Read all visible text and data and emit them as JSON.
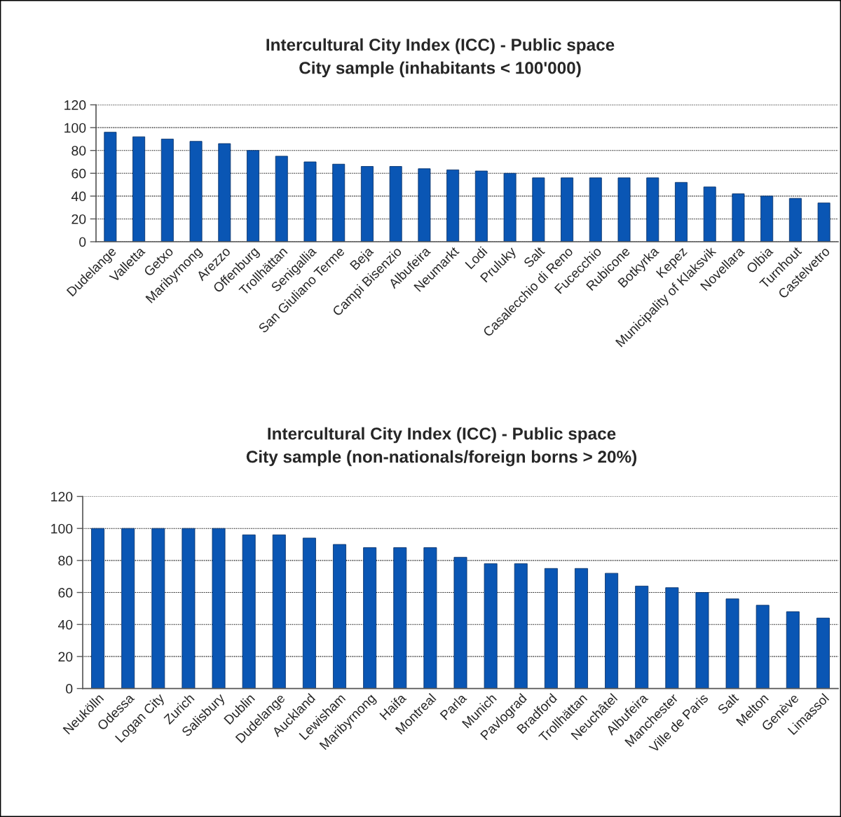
{
  "chart_data": [
    {
      "type": "bar",
      "title": "Intercultural City Index (ICC) - Public space",
      "subtitle": "City sample (inhabitants < 100'000)",
      "categories": [
        "Dudelange",
        "Valletta",
        "Getxo",
        "Maribyrnong",
        "Arezzo",
        "Offenburg",
        "Trollhättan",
        "Senigallia",
        "San Giuliano Terme",
        "Beja",
        "Campi Bisenzio",
        "Albufeira",
        "Neumarkt",
        "Lodi",
        "Pruluky",
        "Salt",
        "Casalecchio di Reno",
        "Fucecchio",
        "Rubicone",
        "Botkyrka",
        "Kepez",
        "Municipality of Klaksvik",
        "Novellara",
        "Olbia",
        "Turnhout",
        "Castelvetro"
      ],
      "values": [
        96,
        92,
        90,
        88,
        86,
        80,
        75,
        70,
        68,
        66,
        66,
        64,
        63,
        62,
        60,
        56,
        56,
        56,
        56,
        56,
        52,
        48,
        42,
        40,
        38,
        34
      ],
      "color": "#0a56b4",
      "ylim": [
        0,
        120
      ],
      "yticks": [
        0,
        20,
        40,
        60,
        80,
        100,
        120
      ],
      "grid": "y"
    },
    {
      "type": "bar",
      "title": "Intercultural City Index (ICC) - Public space",
      "subtitle": "City sample (non-nationals/foreign borns > 20%)",
      "categories": [
        "Neukölln",
        "Odessa",
        "Logan City",
        "Zurich",
        "Salisbury",
        "Dublin",
        "Dudelange",
        "Auckland",
        "Lewisham",
        "Maribyrnong",
        "Haifa",
        "Montreal",
        "Parla",
        "Munich",
        "Pavlograd",
        "Bradford",
        "Trollhättan",
        "Neuchâtel",
        "Albufeira",
        "Manchester",
        "Ville de Paris",
        "Salt",
        "Melton",
        "Genève",
        "Limassol"
      ],
      "values": [
        100,
        100,
        100,
        100,
        100,
        96,
        96,
        94,
        90,
        88,
        88,
        88,
        82,
        78,
        78,
        75,
        75,
        72,
        64,
        63,
        60,
        56,
        52,
        48,
        44
      ],
      "color": "#0a56b4",
      "ylim": [
        0,
        120
      ],
      "yticks": [
        0,
        20,
        40,
        60,
        80,
        100,
        120
      ],
      "grid": "y"
    }
  ]
}
